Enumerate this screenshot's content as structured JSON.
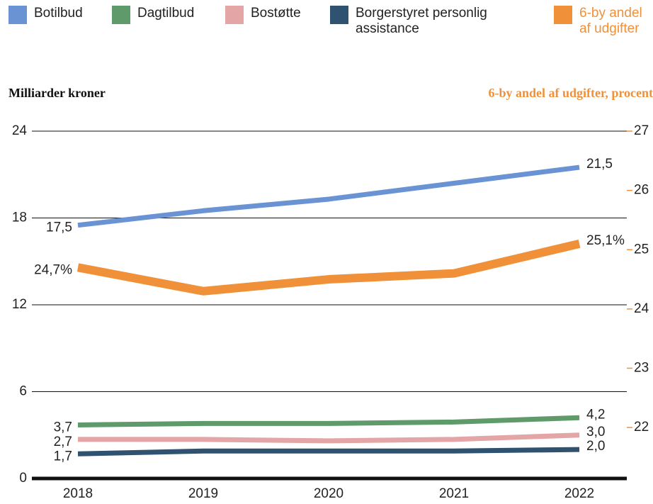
{
  "chart_data": {
    "type": "line",
    "ylabel": "Milliarder kroner",
    "y2label": "6-by andel af udgifter, procent",
    "categories": [
      "2018",
      "2019",
      "2020",
      "2021",
      "2022"
    ],
    "ylim": [
      0,
      24
    ],
    "yticks": [
      0,
      6,
      12,
      18,
      24
    ],
    "y2lim": [
      21.14,
      27
    ],
    "y2ticks": [
      22,
      23,
      24,
      25,
      26,
      27
    ],
    "grid": true,
    "legend": "top",
    "series": [
      {
        "name": "Botilbud",
        "color": "#6a93d4",
        "values": [
          17.5,
          18.5,
          19.3,
          20.4,
          21.5
        ],
        "value_labels": [
          "17,5",
          null,
          null,
          null,
          "21,5"
        ]
      },
      {
        "name": "Dagtilbud",
        "color": "#5e9a6a",
        "values": [
          3.7,
          3.8,
          3.8,
          3.9,
          4.2
        ],
        "value_labels": [
          "3,7",
          null,
          null,
          null,
          "4,2"
        ]
      },
      {
        "name": "Bostøtte",
        "color": "#e3a5a5",
        "values": [
          2.7,
          2.7,
          2.6,
          2.7,
          3.0
        ],
        "value_labels": [
          "2,7",
          null,
          null,
          null,
          "3,0"
        ]
      },
      {
        "name": "Borgerstyret personlig assistance",
        "color": "#2f5270",
        "values": [
          1.7,
          1.9,
          1.9,
          1.9,
          2.0
        ],
        "value_labels": [
          "1,7",
          null,
          null,
          null,
          "2,0"
        ]
      },
      {
        "name": "6-by andel af udgifter",
        "color": "#f0913a",
        "axis": "y2",
        "values": [
          24.7,
          24.3,
          24.5,
          24.6,
          25.1
        ],
        "value_labels": [
          "24,7%",
          null,
          null,
          null,
          "25,1%"
        ]
      }
    ]
  }
}
